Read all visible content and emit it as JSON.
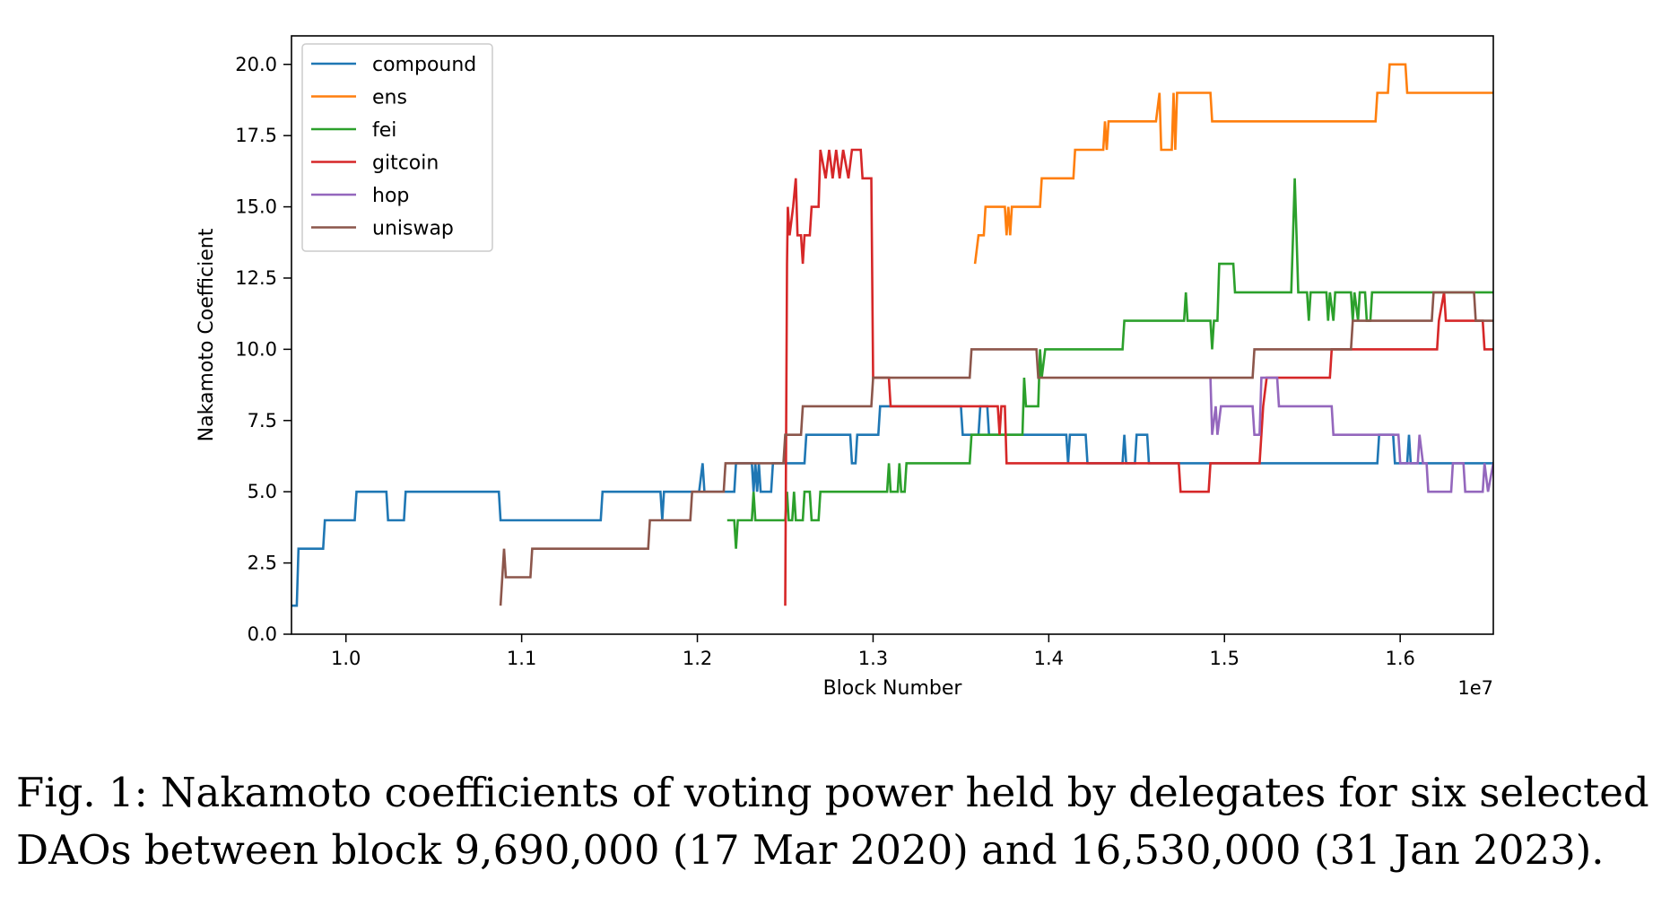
{
  "chart_data": {
    "type": "line",
    "xlabel": "Block Number",
    "ylabel": "Nakamoto Coefficient",
    "x_offset_label": "1e7",
    "xlim": [
      9690000,
      16530000
    ],
    "ylim": [
      0,
      21
    ],
    "xticks": [
      10000000,
      11000000,
      12000000,
      13000000,
      14000000,
      15000000,
      16000000
    ],
    "xtick_labels": [
      "1.0",
      "1.1",
      "1.2",
      "1.3",
      "1.4",
      "1.5",
      "1.6"
    ],
    "yticks": [
      0,
      2.5,
      5,
      7.5,
      10,
      12.5,
      15,
      17.5,
      20
    ],
    "ytick_labels": [
      "0.0",
      "2.5",
      "5.0",
      "7.5",
      "10.0",
      "12.5",
      "15.0",
      "17.5",
      "20.0"
    ],
    "grid": false,
    "legend_position": "top-left",
    "series": [
      {
        "name": "compound",
        "color": "#1f77b4",
        "points": [
          [
            9690000,
            1
          ],
          [
            9720000,
            1
          ],
          [
            9730000,
            3
          ],
          [
            9870000,
            3
          ],
          [
            9880000,
            4
          ],
          [
            10050000,
            4
          ],
          [
            10060000,
            5
          ],
          [
            10230000,
            5
          ],
          [
            10240000,
            4
          ],
          [
            10330000,
            4
          ],
          [
            10340000,
            5
          ],
          [
            10870000,
            5
          ],
          [
            10880000,
            4
          ],
          [
            11450000,
            4
          ],
          [
            11460000,
            5
          ],
          [
            11790000,
            5
          ],
          [
            11800000,
            4
          ],
          [
            11810000,
            5
          ],
          [
            12010000,
            5
          ],
          [
            12030000,
            6
          ],
          [
            12040000,
            5
          ],
          [
            12210000,
            5
          ],
          [
            12220000,
            6
          ],
          [
            12310000,
            6
          ],
          [
            12320000,
            5
          ],
          [
            12330000,
            6
          ],
          [
            12340000,
            5
          ],
          [
            12350000,
            6
          ],
          [
            12360000,
            5
          ],
          [
            12420000,
            5
          ],
          [
            12430000,
            6
          ],
          [
            12610000,
            6
          ],
          [
            12620000,
            7
          ],
          [
            12870000,
            7
          ],
          [
            12880000,
            6
          ],
          [
            12900000,
            6
          ],
          [
            12910000,
            7
          ],
          [
            13030000,
            7
          ],
          [
            13040000,
            8
          ],
          [
            13500000,
            8
          ],
          [
            13510000,
            7
          ],
          [
            13600000,
            7
          ],
          [
            13610000,
            8
          ],
          [
            13650000,
            8
          ],
          [
            13660000,
            7
          ],
          [
            14100000,
            7
          ],
          [
            14110000,
            6
          ],
          [
            14120000,
            7
          ],
          [
            14210000,
            7
          ],
          [
            14220000,
            6
          ],
          [
            14420000,
            6
          ],
          [
            14430000,
            7
          ],
          [
            14440000,
            6
          ],
          [
            14490000,
            6
          ],
          [
            14500000,
            7
          ],
          [
            14560000,
            7
          ],
          [
            14570000,
            6
          ],
          [
            15870000,
            6
          ],
          [
            15880000,
            7
          ],
          [
            15960000,
            7
          ],
          [
            15970000,
            6
          ],
          [
            16040000,
            6
          ],
          [
            16050000,
            7
          ],
          [
            16060000,
            6
          ],
          [
            16530000,
            6
          ]
        ]
      },
      {
        "name": "ens",
        "color": "#ff7f0e",
        "points": [
          [
            13580000,
            13
          ],
          [
            13600000,
            14
          ],
          [
            13630000,
            14
          ],
          [
            13640000,
            15
          ],
          [
            13750000,
            15
          ],
          [
            13760000,
            14
          ],
          [
            13770000,
            15
          ],
          [
            13780000,
            14
          ],
          [
            13790000,
            15
          ],
          [
            13950000,
            15
          ],
          [
            13960000,
            16
          ],
          [
            14140000,
            16
          ],
          [
            14150000,
            17
          ],
          [
            14310000,
            17
          ],
          [
            14320000,
            18
          ],
          [
            14330000,
            17
          ],
          [
            14340000,
            18
          ],
          [
            14610000,
            18
          ],
          [
            14630000,
            19
          ],
          [
            14640000,
            17
          ],
          [
            14700000,
            17
          ],
          [
            14710000,
            19
          ],
          [
            14720000,
            17
          ],
          [
            14730000,
            19
          ],
          [
            14920000,
            19
          ],
          [
            14930000,
            18
          ],
          [
            15860000,
            18
          ],
          [
            15870000,
            19
          ],
          [
            15930000,
            19
          ],
          [
            15940000,
            20
          ],
          [
            16030000,
            20
          ],
          [
            16040000,
            19
          ],
          [
            16530000,
            19
          ]
        ]
      },
      {
        "name": "fei",
        "color": "#2ca02c",
        "points": [
          [
            12170000,
            4
          ],
          [
            12210000,
            4
          ],
          [
            12220000,
            3
          ],
          [
            12230000,
            4
          ],
          [
            12310000,
            4
          ],
          [
            12320000,
            5
          ],
          [
            12330000,
            4
          ],
          [
            12500000,
            4
          ],
          [
            12510000,
            5
          ],
          [
            12520000,
            4
          ],
          [
            12540000,
            4
          ],
          [
            12550000,
            5
          ],
          [
            12560000,
            4
          ],
          [
            12600000,
            4
          ],
          [
            12610000,
            5
          ],
          [
            12640000,
            5
          ],
          [
            12650000,
            4
          ],
          [
            12690000,
            4
          ],
          [
            12700000,
            5
          ],
          [
            13080000,
            5
          ],
          [
            13090000,
            6
          ],
          [
            13100000,
            5
          ],
          [
            13140000,
            5
          ],
          [
            13150000,
            6
          ],
          [
            13160000,
            5
          ],
          [
            13180000,
            5
          ],
          [
            13190000,
            6
          ],
          [
            13550000,
            6
          ],
          [
            13560000,
            7
          ],
          [
            13850000,
            7
          ],
          [
            13860000,
            9
          ],
          [
            13870000,
            8
          ],
          [
            13940000,
            8
          ],
          [
            13950000,
            10
          ],
          [
            13960000,
            9
          ],
          [
            13980000,
            10
          ],
          [
            14420000,
            10
          ],
          [
            14430000,
            11
          ],
          [
            14770000,
            11
          ],
          [
            14780000,
            12
          ],
          [
            14790000,
            11
          ],
          [
            14920000,
            11
          ],
          [
            14930000,
            10
          ],
          [
            14940000,
            11
          ],
          [
            14960000,
            11
          ],
          [
            14970000,
            13
          ],
          [
            15050000,
            13
          ],
          [
            15060000,
            12
          ],
          [
            15380000,
            12
          ],
          [
            15390000,
            14
          ],
          [
            15400000,
            16
          ],
          [
            15410000,
            14
          ],
          [
            15420000,
            12
          ],
          [
            15470000,
            12
          ],
          [
            15480000,
            11
          ],
          [
            15490000,
            12
          ],
          [
            15580000,
            12
          ],
          [
            15590000,
            11
          ],
          [
            15600000,
            12
          ],
          [
            15620000,
            11
          ],
          [
            15630000,
            12
          ],
          [
            15720000,
            12
          ],
          [
            15730000,
            11
          ],
          [
            15740000,
            12
          ],
          [
            15760000,
            11
          ],
          [
            15770000,
            12
          ],
          [
            15800000,
            12
          ],
          [
            15810000,
            11
          ],
          [
            15830000,
            11
          ],
          [
            15840000,
            12
          ],
          [
            16530000,
            12
          ]
        ]
      },
      {
        "name": "gitcoin",
        "color": "#d62728",
        "points": [
          [
            12500000,
            1
          ],
          [
            12510000,
            13
          ],
          [
            12515000,
            15
          ],
          [
            12525000,
            14
          ],
          [
            12545000,
            15
          ],
          [
            12560000,
            16
          ],
          [
            12570000,
            14
          ],
          [
            12590000,
            14
          ],
          [
            12600000,
            13
          ],
          [
            12610000,
            14
          ],
          [
            12640000,
            14
          ],
          [
            12650000,
            15
          ],
          [
            12690000,
            15
          ],
          [
            12700000,
            17
          ],
          [
            12730000,
            16
          ],
          [
            12750000,
            17
          ],
          [
            12770000,
            16
          ],
          [
            12790000,
            17
          ],
          [
            12810000,
            16
          ],
          [
            12830000,
            17
          ],
          [
            12860000,
            16
          ],
          [
            12880000,
            17
          ],
          [
            12930000,
            17
          ],
          [
            12940000,
            16
          ],
          [
            12990000,
            16
          ],
          [
            13000000,
            9
          ],
          [
            13090000,
            9
          ],
          [
            13100000,
            8
          ],
          [
            13710000,
            8
          ],
          [
            13720000,
            7
          ],
          [
            13730000,
            8
          ],
          [
            13750000,
            8
          ],
          [
            13760000,
            6
          ],
          [
            14740000,
            6
          ],
          [
            14750000,
            5
          ],
          [
            14910000,
            5
          ],
          [
            14920000,
            6
          ],
          [
            15200000,
            6
          ],
          [
            15210000,
            7
          ],
          [
            15220000,
            8
          ],
          [
            15240000,
            9
          ],
          [
            15280000,
            9
          ],
          [
            15290000,
            9
          ],
          [
            15600000,
            9
          ],
          [
            15610000,
            10
          ],
          [
            16210000,
            10
          ],
          [
            16220000,
            11
          ],
          [
            16250000,
            12
          ],
          [
            16260000,
            11
          ],
          [
            16470000,
            11
          ],
          [
            16480000,
            10
          ],
          [
            16530000,
            10
          ]
        ]
      },
      {
        "name": "hop",
        "color": "#9467bd",
        "points": [
          [
            14920000,
            9
          ],
          [
            14930000,
            7
          ],
          [
            14950000,
            8
          ],
          [
            14960000,
            7
          ],
          [
            14980000,
            8
          ],
          [
            15160000,
            8
          ],
          [
            15170000,
            7
          ],
          [
            15200000,
            7
          ],
          [
            15210000,
            9
          ],
          [
            15300000,
            9
          ],
          [
            15310000,
            8
          ],
          [
            15610000,
            8
          ],
          [
            15620000,
            7
          ],
          [
            15990000,
            7
          ],
          [
            16000000,
            6
          ],
          [
            16100000,
            6
          ],
          [
            16110000,
            7
          ],
          [
            16130000,
            6
          ],
          [
            16150000,
            6
          ],
          [
            16160000,
            5
          ],
          [
            16290000,
            5
          ],
          [
            16300000,
            6
          ],
          [
            16360000,
            6
          ],
          [
            16370000,
            5
          ],
          [
            16470000,
            5
          ],
          [
            16480000,
            6
          ],
          [
            16500000,
            5
          ],
          [
            16530000,
            6
          ]
        ]
      },
      {
        "name": "uniswap",
        "color": "#8c564b",
        "points": [
          [
            10880000,
            1
          ],
          [
            10900000,
            3
          ],
          [
            10910000,
            2
          ],
          [
            11050000,
            2
          ],
          [
            11060000,
            3
          ],
          [
            11720000,
            3
          ],
          [
            11730000,
            4
          ],
          [
            11960000,
            4
          ],
          [
            11970000,
            5
          ],
          [
            12150000,
            5
          ],
          [
            12160000,
            6
          ],
          [
            12490000,
            6
          ],
          [
            12500000,
            7
          ],
          [
            12590000,
            7
          ],
          [
            12600000,
            8
          ],
          [
            12990000,
            8
          ],
          [
            13000000,
            9
          ],
          [
            13550000,
            9
          ],
          [
            13560000,
            10
          ],
          [
            13930000,
            10
          ],
          [
            13940000,
            9
          ],
          [
            15160000,
            9
          ],
          [
            15170000,
            10
          ],
          [
            15720000,
            10
          ],
          [
            15730000,
            11
          ],
          [
            16180000,
            11
          ],
          [
            16190000,
            12
          ],
          [
            16420000,
            12
          ],
          [
            16430000,
            11
          ],
          [
            16530000,
            11
          ]
        ]
      }
    ]
  },
  "caption": {
    "line1": "Fig. 1: Nakamoto coefficients of voting power held by delegates for six selected",
    "line2": "DAOs between block 9,690,000 (17 Mar 2020) and 16,530,000 (31 Jan 2023)."
  }
}
